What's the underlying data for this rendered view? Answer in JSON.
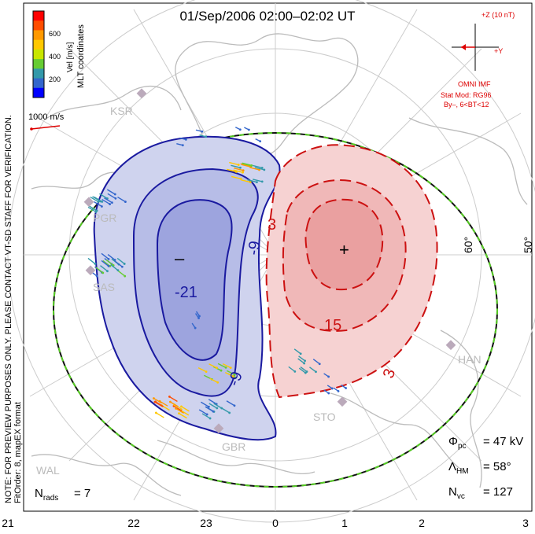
{
  "title": "01/Sep/2006 02:00–02:02 UT",
  "side_note_line1": "NOTE: FOR PREVIEW PURPOSES ONLY. PLEASE CONTACT VT-SD STAFF FOR VERIFICATION.",
  "side_note_line2": "FitOrder: 8, mapEX format",
  "colorbar": {
    "label": "Vel [m/s]",
    "ticks": [
      "600",
      "400",
      "200"
    ],
    "coords_label": "MLT coordinates",
    "colors": [
      "#ff0000",
      "#ff4d00",
      "#ff9900",
      "#ffc800",
      "#c8e600",
      "#66cc33",
      "#3399aa",
      "#3366cc",
      "#0000ff"
    ]
  },
  "scale_vector": {
    "label": "1000 m/s",
    "color": "#dd0000"
  },
  "imf": {
    "z_label": "+Z (10 nT)",
    "y_label": "+Y",
    "omni_label": "OMNI IMF",
    "model_line1": "Stat Mod: RG96",
    "model_line2": "By–, 6<BT<12",
    "color": "#dd0000"
  },
  "stations": [
    {
      "name": "KSR"
    },
    {
      "name": "PGR"
    },
    {
      "name": "SAS"
    },
    {
      "name": "GBR"
    },
    {
      "name": "STO"
    },
    {
      "name": "HAN"
    },
    {
      "name": "WAL"
    }
  ],
  "lat_labels": [
    "60°",
    "50°"
  ],
  "contours": {
    "negative": [
      "-21",
      "-9",
      "-9"
    ],
    "positive": [
      "3",
      "15",
      "3"
    ],
    "min_marker": "–",
    "max_marker": "+"
  },
  "stats": {
    "phi_pc": "= 47 kV",
    "lambda_hm": "= 58°",
    "n_vc": "= 127",
    "n_rads": "= 7"
  },
  "mlt_ticks": [
    "21",
    "22",
    "23",
    "0",
    "1",
    "2",
    "3"
  ],
  "colors": {
    "negative_fill": "#cfd3ee",
    "negative_line": "#1a1aa0",
    "positive_fill": "#f6d2d2",
    "positive_line": "#cc1111",
    "hmb": "#111111",
    "hmb_dash": "#55cc22",
    "land": "#bbbbbb",
    "grid": "#cccccc",
    "station": "#bbaabb"
  }
}
